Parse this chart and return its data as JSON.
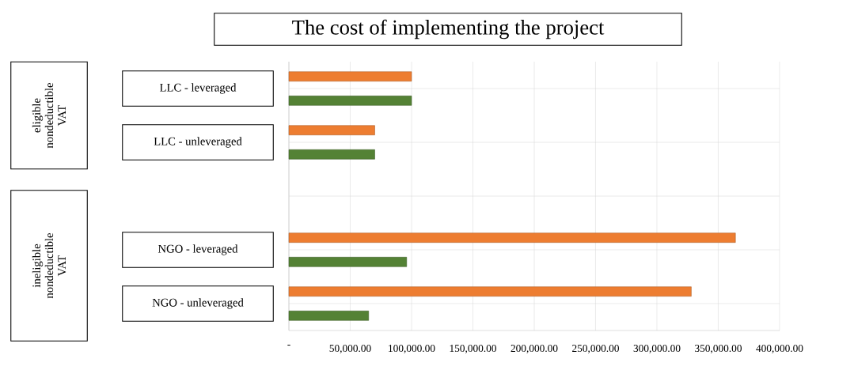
{
  "chart_data": {
    "type": "bar",
    "orientation": "horizontal",
    "title": "The cost of implementing the project",
    "categories": [
      "LLC - leveraged",
      "LLC - unleveraged",
      null,
      "NGO - leveraged",
      "NGO - unleveraged"
    ],
    "series": [
      {
        "color": "#ed7d31",
        "values": [
          100000,
          70000,
          null,
          364000,
          328000
        ]
      },
      {
        "color": "#548235",
        "values": [
          100000,
          70000,
          null,
          96000,
          65000
        ]
      }
    ],
    "xlim": [
      0,
      400000
    ],
    "xticks": [
      {
        "value": 0,
        "label": "-"
      },
      {
        "value": 50000,
        "label": "50,000.00"
      },
      {
        "value": 100000,
        "label": "100,000.00"
      },
      {
        "value": 150000,
        "label": "150,000.00"
      },
      {
        "value": 200000,
        "label": "200,000.00"
      },
      {
        "value": 250000,
        "label": "250,000.00"
      },
      {
        "value": 300000,
        "label": "300,000.00"
      },
      {
        "value": 350000,
        "label": "350,000.00"
      },
      {
        "value": 400000,
        "label": "400,000.00"
      }
    ],
    "grid": true,
    "annotations": [
      "eligible nondeductible VAT",
      "ineligible nondeductible VAT"
    ]
  }
}
